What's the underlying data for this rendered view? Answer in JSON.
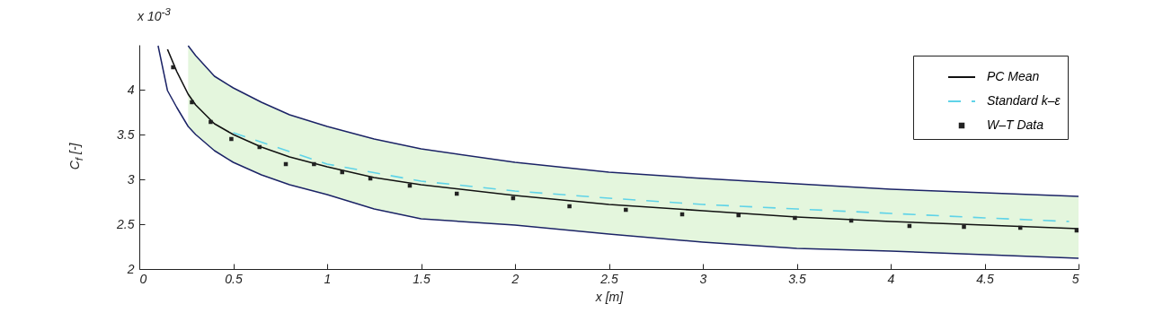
{
  "chart_data": {
    "type": "line",
    "xlabel": "x [m]",
    "ylabel": "C$_{f}$ [-]",
    "annotations": [
      "x 10$^{-3}$"
    ],
    "xlim": [
      0,
      5
    ],
    "ylim": [
      2,
      4.5
    ],
    "xticks": [
      0,
      0.5,
      1,
      1.5,
      2,
      2.5,
      3,
      3.5,
      4,
      4.5,
      5
    ],
    "yticks": [
      2,
      2.5,
      3,
      3.5,
      4
    ],
    "grid": false,
    "legend": "top right",
    "series": [
      {
        "color": "#1b2366",
        "line_style": "solid",
        "x": [
          0.26,
          0.3,
          0.4,
          0.5,
          0.65,
          0.8,
          1,
          1.25,
          1.5,
          2,
          2.5,
          3,
          3.5,
          4,
          4.5,
          5
        ],
        "values": [
          4.49,
          4.38,
          4.15,
          4.02,
          3.86,
          3.72,
          3.59,
          3.45,
          3.34,
          3.19,
          3.08,
          3.01,
          2.95,
          2.89,
          2.85,
          2.81
        ],
        "lower": [
          3.59,
          3.5,
          3.32,
          3.19,
          3.05,
          2.94,
          2.83,
          2.67,
          2.56,
          2.49,
          2.39,
          2.3,
          2.23,
          2.2,
          2.16,
          2.12
        ],
        "upper": [
          4.49,
          4.38,
          4.15,
          4.02,
          3.86,
          3.72,
          3.59,
          3.45,
          3.34,
          3.19,
          3.08,
          3.01,
          2.95,
          2.89,
          2.85,
          2.81
        ]
      },
      {
        "color": "#1b2366",
        "line_style": "solid",
        "x": [
          0.1,
          0.15,
          0.2,
          0.26,
          0.3,
          0.4,
          0.5,
          0.65,
          0.8,
          1,
          1.25,
          1.5,
          2,
          2.5,
          3,
          3.5,
          4,
          4.5,
          5
        ],
        "values": [
          4.49,
          3.99,
          3.8,
          3.59,
          3.5,
          3.32,
          3.19,
          3.05,
          2.94,
          2.83,
          2.67,
          2.56,
          2.49,
          2.39,
          2.3,
          2.23,
          2.2,
          2.16,
          2.12
        ]
      },
      {
        "name": "PC Mean",
        "color": "#111111",
        "line_style": "solid",
        "x": [
          0.15,
          0.2,
          0.26,
          0.3,
          0.4,
          0.5,
          0.65,
          0.8,
          1,
          1.25,
          1.5,
          2,
          2.5,
          3,
          3.5,
          4,
          4.5,
          5
        ],
        "values": [
          4.45,
          4.2,
          3.95,
          3.83,
          3.62,
          3.5,
          3.36,
          3.25,
          3.14,
          3.02,
          2.94,
          2.82,
          2.72,
          2.65,
          2.58,
          2.53,
          2.49,
          2.45
        ]
      },
      {
        "name": "Standard k–ε",
        "color": "#5fd3e8",
        "line_style": "dashed",
        "x": [
          0.5,
          1,
          1.5,
          2,
          2.5,
          3,
          3.5,
          4,
          4.5,
          4.95
        ],
        "values": [
          3.52,
          3.17,
          2.98,
          2.87,
          2.79,
          2.72,
          2.67,
          2.62,
          2.57,
          2.53
        ]
      },
      {
        "name": "W–T Data",
        "type": "scatter",
        "color": "#222222",
        "marker": "square",
        "x": [
          0.18,
          0.28,
          0.38,
          0.49,
          0.64,
          0.78,
          0.93,
          1.08,
          1.23,
          1.44,
          1.69,
          1.99,
          2.29,
          2.59,
          2.89,
          3.19,
          3.49,
          3.79,
          4.1,
          4.39,
          4.69,
          4.99
        ],
        "values": [
          4.25,
          3.86,
          3.64,
          3.45,
          3.36,
          3.17,
          3.17,
          3.08,
          3.01,
          2.93,
          2.84,
          2.79,
          2.7,
          2.66,
          2.61,
          2.6,
          2.57,
          2.54,
          2.48,
          2.47,
          2.46,
          2.43
        ]
      }
    ]
  }
}
